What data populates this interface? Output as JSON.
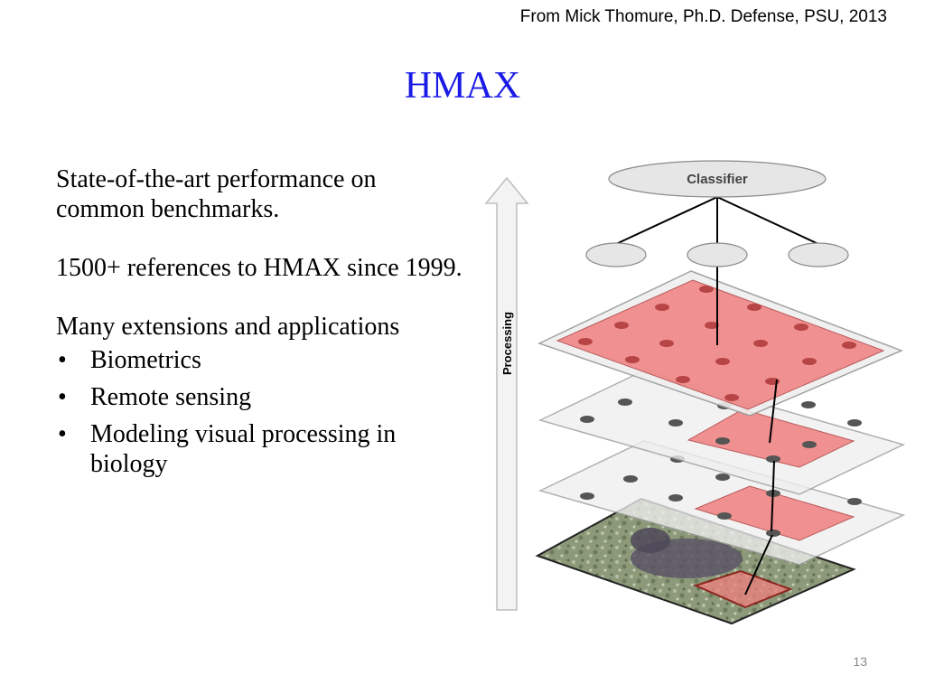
{
  "header": {
    "attribution": "From Mick Thomure, Ph.D. Defense, PSU, 2013",
    "title": "HMAX"
  },
  "body": {
    "paragraph_1": "State-of-the-art performance on common benchmarks.",
    "paragraph_2": "1500+ references to HMAX since 1999.",
    "paragraph_3": "Many extensions and applications",
    "bullet_glyph": "•",
    "bullets": [
      "Biometrics",
      "Remote sensing",
      "Modeling visual processing in biology"
    ]
  },
  "diagram": {
    "arrow_label": "Processing",
    "classifier_label": "Classifier",
    "colors": {
      "highlight": "#f08080",
      "layer_fill": "#efefef",
      "node_fill": "#e6e6e6",
      "dot": "#555555",
      "title_blue": "#1a1ae6"
    }
  },
  "footer": {
    "page_number": "13"
  }
}
